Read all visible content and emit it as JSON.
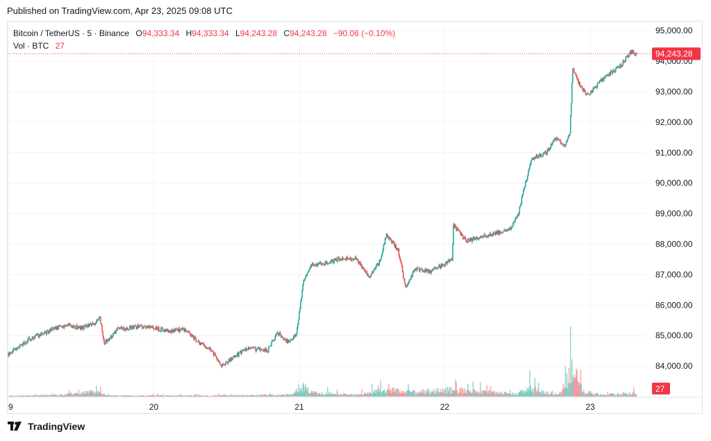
{
  "header": {
    "published": "Published on TradingView.com, Apr 23, 2025 09:08 UTC"
  },
  "legend": {
    "symbol": "Bitcoin / TetherUS · 5 · Binance",
    "o_label": "O",
    "o_value": "94,333.34",
    "h_label": "H",
    "h_value": "94,333.34",
    "l_label": "L",
    "l_value": "94,243.28",
    "c_label": "C",
    "c_value": "94,243.28",
    "change": "−90.06 (−0.10%)",
    "vol_label": "Vol · BTC",
    "vol_value": "27"
  },
  "footer": {
    "brand": "TradingView"
  },
  "colors": {
    "up": "#26a69a",
    "down": "#ef5350",
    "price_tag": "#f23645",
    "grid": "#f0f3fa"
  },
  "chart_data": {
    "type": "candlestick",
    "symbol": "BTCUSDT",
    "interval": "5m",
    "x_ticks": [
      "9",
      "20",
      "21",
      "22",
      "23"
    ],
    "y_ticks": [
      "84,000.00",
      "85,000.00",
      "86,000.00",
      "87,000.00",
      "88,000.00",
      "89,000.00",
      "90,000.00",
      "91,000.00",
      "92,000.00",
      "93,000.00",
      "94,000.00",
      "95,000.00"
    ],
    "ylim": [
      83000,
      95300
    ],
    "last_price": 94243.28,
    "last_price_label": "94,243.28",
    "last_volume_label": "27",
    "volume_ylim": [
      0,
      200
    ],
    "grid": true,
    "price_path": [
      [
        0.0,
        84400
      ],
      [
        0.15,
        84900
      ],
      [
        0.3,
        85200
      ],
      [
        0.4,
        85350
      ],
      [
        0.5,
        85250
      ],
      [
        0.6,
        85400
      ],
      [
        0.63,
        85600
      ],
      [
        0.66,
        84750
      ],
      [
        0.75,
        85200
      ],
      [
        0.9,
        85300
      ],
      [
        1.0,
        85250
      ],
      [
        1.1,
        85150
      ],
      [
        1.22,
        85200
      ],
      [
        1.3,
        84800
      ],
      [
        1.4,
        84500
      ],
      [
        1.47,
        84000
      ],
      [
        1.55,
        84300
      ],
      [
        1.65,
        84600
      ],
      [
        1.7,
        84550
      ],
      [
        1.78,
        84500
      ],
      [
        1.85,
        85100
      ],
      [
        1.92,
        84800
      ],
      [
        1.98,
        85050
      ],
      [
        2.03,
        86800
      ],
      [
        2.08,
        87300
      ],
      [
        2.2,
        87400
      ],
      [
        2.3,
        87550
      ],
      [
        2.4,
        87500
      ],
      [
        2.48,
        86900
      ],
      [
        2.55,
        87400
      ],
      [
        2.6,
        88300
      ],
      [
        2.68,
        87800
      ],
      [
        2.73,
        86600
      ],
      [
        2.8,
        87200
      ],
      [
        2.9,
        87100
      ],
      [
        2.98,
        87300
      ],
      [
        3.05,
        87500
      ],
      [
        3.06,
        88600
      ],
      [
        3.15,
        88100
      ],
      [
        3.3,
        88300
      ],
      [
        3.45,
        88500
      ],
      [
        3.5,
        88900
      ],
      [
        3.54,
        89700
      ],
      [
        3.6,
        90800
      ],
      [
        3.7,
        91000
      ],
      [
        3.76,
        91500
      ],
      [
        3.82,
        91200
      ],
      [
        3.86,
        91600
      ],
      [
        3.88,
        93800
      ],
      [
        3.93,
        93200
      ],
      [
        3.98,
        92900
      ],
      [
        4.03,
        93100
      ],
      [
        4.1,
        93500
      ],
      [
        4.2,
        93800
      ],
      [
        4.28,
        94300
      ],
      [
        4.32,
        94243.28
      ]
    ],
    "volume_path": [
      [
        0.0,
        6
      ],
      [
        0.3,
        10
      ],
      [
        0.62,
        40
      ],
      [
        0.7,
        8
      ],
      [
        1.4,
        8
      ],
      [
        1.95,
        15
      ],
      [
        2.02,
        90
      ],
      [
        2.1,
        30
      ],
      [
        2.4,
        15
      ],
      [
        2.6,
        60
      ],
      [
        2.75,
        35
      ],
      [
        3.06,
        55
      ],
      [
        3.5,
        20
      ],
      [
        3.58,
        70
      ],
      [
        3.7,
        30
      ],
      [
        3.8,
        25
      ],
      [
        3.88,
        260
      ],
      [
        3.95,
        40
      ],
      [
        4.1,
        15
      ],
      [
        4.3,
        27
      ]
    ]
  }
}
